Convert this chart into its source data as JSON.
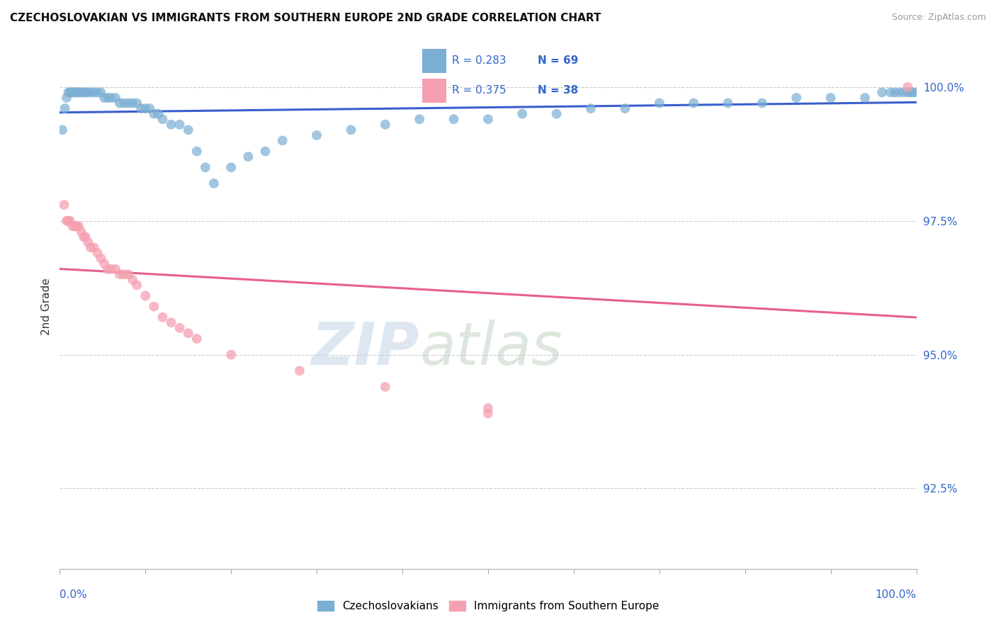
{
  "title": "CZECHOSLOVAKIAN VS IMMIGRANTS FROM SOUTHERN EUROPE 2ND GRADE CORRELATION CHART",
  "source": "Source: ZipAtlas.com",
  "ylabel": "2nd Grade",
  "xlim": [
    0.0,
    1.0
  ],
  "ylim": [
    0.91,
    1.008
  ],
  "ytick_labels": [
    "92.5%",
    "95.0%",
    "97.5%",
    "100.0%"
  ],
  "ytick_values": [
    0.925,
    0.95,
    0.975,
    1.0
  ],
  "blue_R": 0.283,
  "blue_N": 69,
  "pink_R": 0.375,
  "pink_N": 38,
  "blue_color": "#7BAFD4",
  "pink_color": "#F4A0B0",
  "blue_line_color": "#3A5FCD",
  "pink_line_color": "#E8608A",
  "legend_label_blue": "Czechoslovakians",
  "legend_label_pink": "Immigrants from Southern Europe",
  "blue_scatter_x": [
    0.003,
    0.006,
    0.008,
    0.01,
    0.012,
    0.014,
    0.016,
    0.018,
    0.02,
    0.022,
    0.025,
    0.028,
    0.03,
    0.033,
    0.036,
    0.04,
    0.044,
    0.048,
    0.052,
    0.056,
    0.06,
    0.065,
    0.07,
    0.075,
    0.08,
    0.085,
    0.09,
    0.095,
    0.1,
    0.105,
    0.11,
    0.115,
    0.12,
    0.13,
    0.14,
    0.15,
    0.16,
    0.17,
    0.18,
    0.2,
    0.22,
    0.24,
    0.26,
    0.3,
    0.34,
    0.38,
    0.42,
    0.46,
    0.5,
    0.54,
    0.58,
    0.62,
    0.66,
    0.7,
    0.74,
    0.78,
    0.82,
    0.86,
    0.9,
    0.94,
    0.96,
    0.97,
    0.975,
    0.98,
    0.985,
    0.99,
    0.993,
    0.996,
    1.0
  ],
  "blue_scatter_y": [
    0.992,
    0.996,
    0.998,
    0.999,
    0.999,
    0.999,
    0.999,
    0.999,
    0.999,
    0.999,
    0.999,
    0.999,
    0.999,
    0.999,
    0.999,
    0.999,
    0.999,
    0.999,
    0.998,
    0.998,
    0.998,
    0.998,
    0.997,
    0.997,
    0.997,
    0.997,
    0.997,
    0.996,
    0.996,
    0.996,
    0.995,
    0.995,
    0.994,
    0.993,
    0.993,
    0.992,
    0.988,
    0.985,
    0.982,
    0.985,
    0.987,
    0.988,
    0.99,
    0.991,
    0.992,
    0.993,
    0.994,
    0.994,
    0.994,
    0.995,
    0.995,
    0.996,
    0.996,
    0.997,
    0.997,
    0.997,
    0.997,
    0.998,
    0.998,
    0.998,
    0.999,
    0.999,
    0.999,
    0.999,
    0.999,
    0.999,
    0.999,
    0.999,
    0.999
  ],
  "pink_scatter_x": [
    0.005,
    0.008,
    0.01,
    0.012,
    0.015,
    0.018,
    0.02,
    0.022,
    0.025,
    0.028,
    0.03,
    0.033,
    0.036,
    0.04,
    0.044,
    0.048,
    0.052,
    0.056,
    0.06,
    0.065,
    0.07,
    0.075,
    0.08,
    0.085,
    0.09,
    0.1,
    0.11,
    0.12,
    0.13,
    0.14,
    0.15,
    0.16,
    0.2,
    0.28,
    0.38,
    0.5,
    0.5,
    0.99
  ],
  "pink_scatter_y": [
    0.978,
    0.975,
    0.975,
    0.975,
    0.974,
    0.974,
    0.974,
    0.974,
    0.973,
    0.972,
    0.972,
    0.971,
    0.97,
    0.97,
    0.969,
    0.968,
    0.967,
    0.966,
    0.966,
    0.966,
    0.965,
    0.965,
    0.965,
    0.964,
    0.963,
    0.961,
    0.959,
    0.957,
    0.956,
    0.955,
    0.954,
    0.953,
    0.95,
    0.947,
    0.944,
    0.94,
    0.939,
    1.0
  ]
}
